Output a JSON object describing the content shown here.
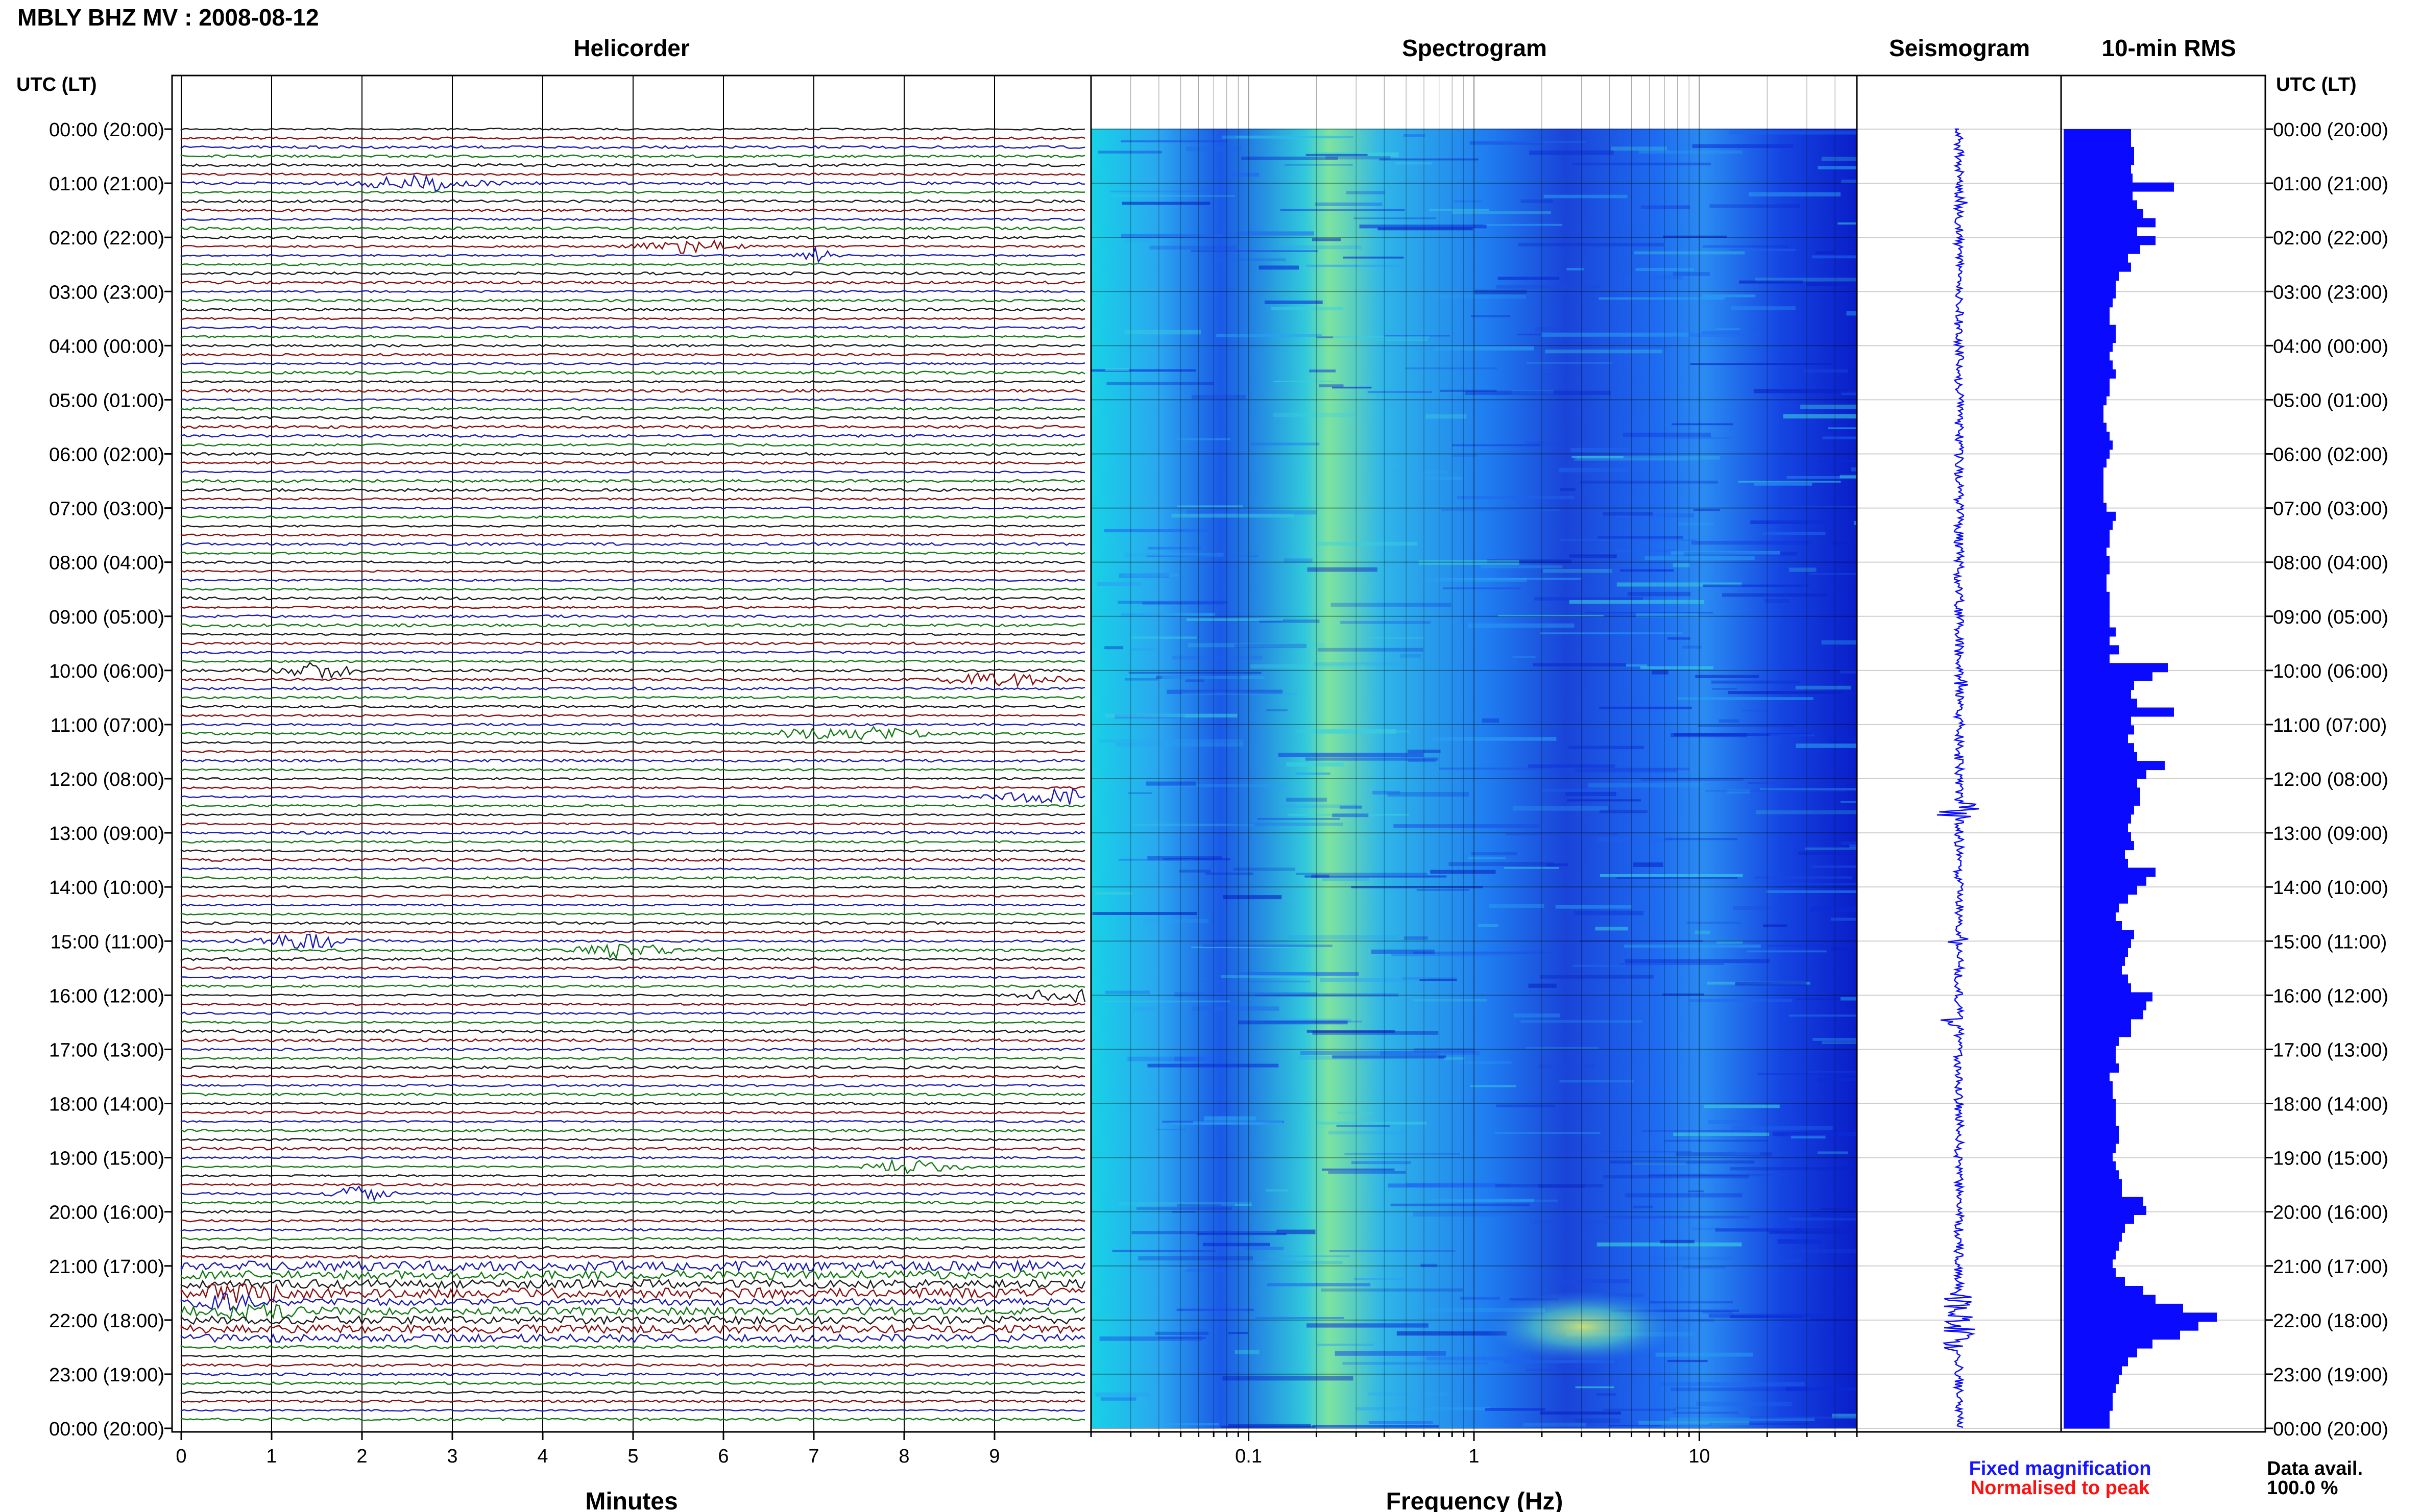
{
  "header": {
    "station_title": "MBLY BHZ MV : 2008-08-12"
  },
  "panels": {
    "helicorder_title": "Helicorder",
    "spectrogram_title": "Spectrogram",
    "seismogram_title": "Seismogram",
    "rms_title": "10-min RMS"
  },
  "axes": {
    "left_time_header": "UTC (LT)",
    "right_time_header": "UTC (LT)",
    "minutes_label": "Minutes",
    "frequency_label": "Frequency (Hz)"
  },
  "legend": {
    "fixed_label": "Fixed magnification",
    "normalised_label": "Normalised to peak",
    "fixed_color": "#1515ff",
    "normalised_color": "#ff1010"
  },
  "availability": {
    "label": "Data avail.",
    "value": "100.0 %"
  },
  "colors": {
    "black": "#1a1a1a",
    "red": "#8b0d0d",
    "blue": "#1a1ab5",
    "green": "#137a13",
    "rms": "#0a0aff"
  },
  "chart_data": {
    "type": "heatmap",
    "time_labels": [
      "00:00 (20:00)",
      "01:00 (21:00)",
      "02:00 (22:00)",
      "03:00 (23:00)",
      "04:00 (00:00)",
      "05:00 (01:00)",
      "06:00 (02:00)",
      "07:00 (03:00)",
      "08:00 (04:00)",
      "09:00 (05:00)",
      "10:00 (06:00)",
      "11:00 (07:00)",
      "12:00 (08:00)",
      "13:00 (09:00)",
      "14:00 (10:00)",
      "15:00 (11:00)",
      "16:00 (12:00)",
      "17:00 (13:00)",
      "18:00 (14:00)",
      "19:00 (15:00)",
      "20:00 (16:00)",
      "21:00 (17:00)",
      "22:00 (18:00)",
      "23:00 (19:00)",
      "00:00 (20:00)"
    ],
    "minute_ticks": [
      "0",
      "1",
      "2",
      "3",
      "4",
      "5",
      "6",
      "7",
      "8",
      "9"
    ],
    "frequency_ticks": [
      "0.1",
      "1",
      "10"
    ],
    "frequency_range_hz": [
      0.02,
      50
    ],
    "frequency_scale": "log",
    "helicorder_trace_colors": [
      "black",
      "red",
      "blue",
      "green"
    ],
    "rms_relative": [
      0.44,
      0.44,
      0.46,
      0.46,
      0.44,
      0.45,
      0.72,
      0.45,
      0.48,
      0.52,
      0.6,
      0.48,
      0.6,
      0.5,
      0.42,
      0.44,
      0.36,
      0.34,
      0.34,
      0.32,
      0.3,
      0.3,
      0.34,
      0.34,
      0.32,
      0.3,
      0.32,
      0.34,
      0.3,
      0.3,
      0.28,
      0.26,
      0.26,
      0.28,
      0.3,
      0.32,
      0.3,
      0.28,
      0.26,
      0.26,
      0.26,
      0.26,
      0.28,
      0.34,
      0.32,
      0.3,
      0.3,
      0.28,
      0.3,
      0.3,
      0.28,
      0.28,
      0.3,
      0.3,
      0.3,
      0.3,
      0.34,
      0.3,
      0.36,
      0.3,
      0.68,
      0.58,
      0.46,
      0.44,
      0.48,
      0.72,
      0.44,
      0.46,
      0.42,
      0.46,
      0.48,
      0.66,
      0.54,
      0.48,
      0.5,
      0.5,
      0.46,
      0.44,
      0.42,
      0.44,
      0.46,
      0.4,
      0.42,
      0.6,
      0.54,
      0.48,
      0.42,
      0.36,
      0.34,
      0.38,
      0.46,
      0.44,
      0.42,
      0.4,
      0.38,
      0.42,
      0.44,
      0.58,
      0.54,
      0.52,
      0.44,
      0.44,
      0.36,
      0.34,
      0.34,
      0.36,
      0.3,
      0.32,
      0.32,
      0.34,
      0.34,
      0.34,
      0.36,
      0.36,
      0.34,
      0.32,
      0.34,
      0.36,
      0.38,
      0.38,
      0.52,
      0.54,
      0.46,
      0.4,
      0.38,
      0.36,
      0.34,
      0.32,
      0.34,
      0.4,
      0.52,
      0.6,
      0.78,
      1.0,
      0.88,
      0.76,
      0.58,
      0.48,
      0.42,
      0.38,
      0.36,
      0.34,
      0.32,
      0.32,
      0.3,
      0.3
    ]
  }
}
